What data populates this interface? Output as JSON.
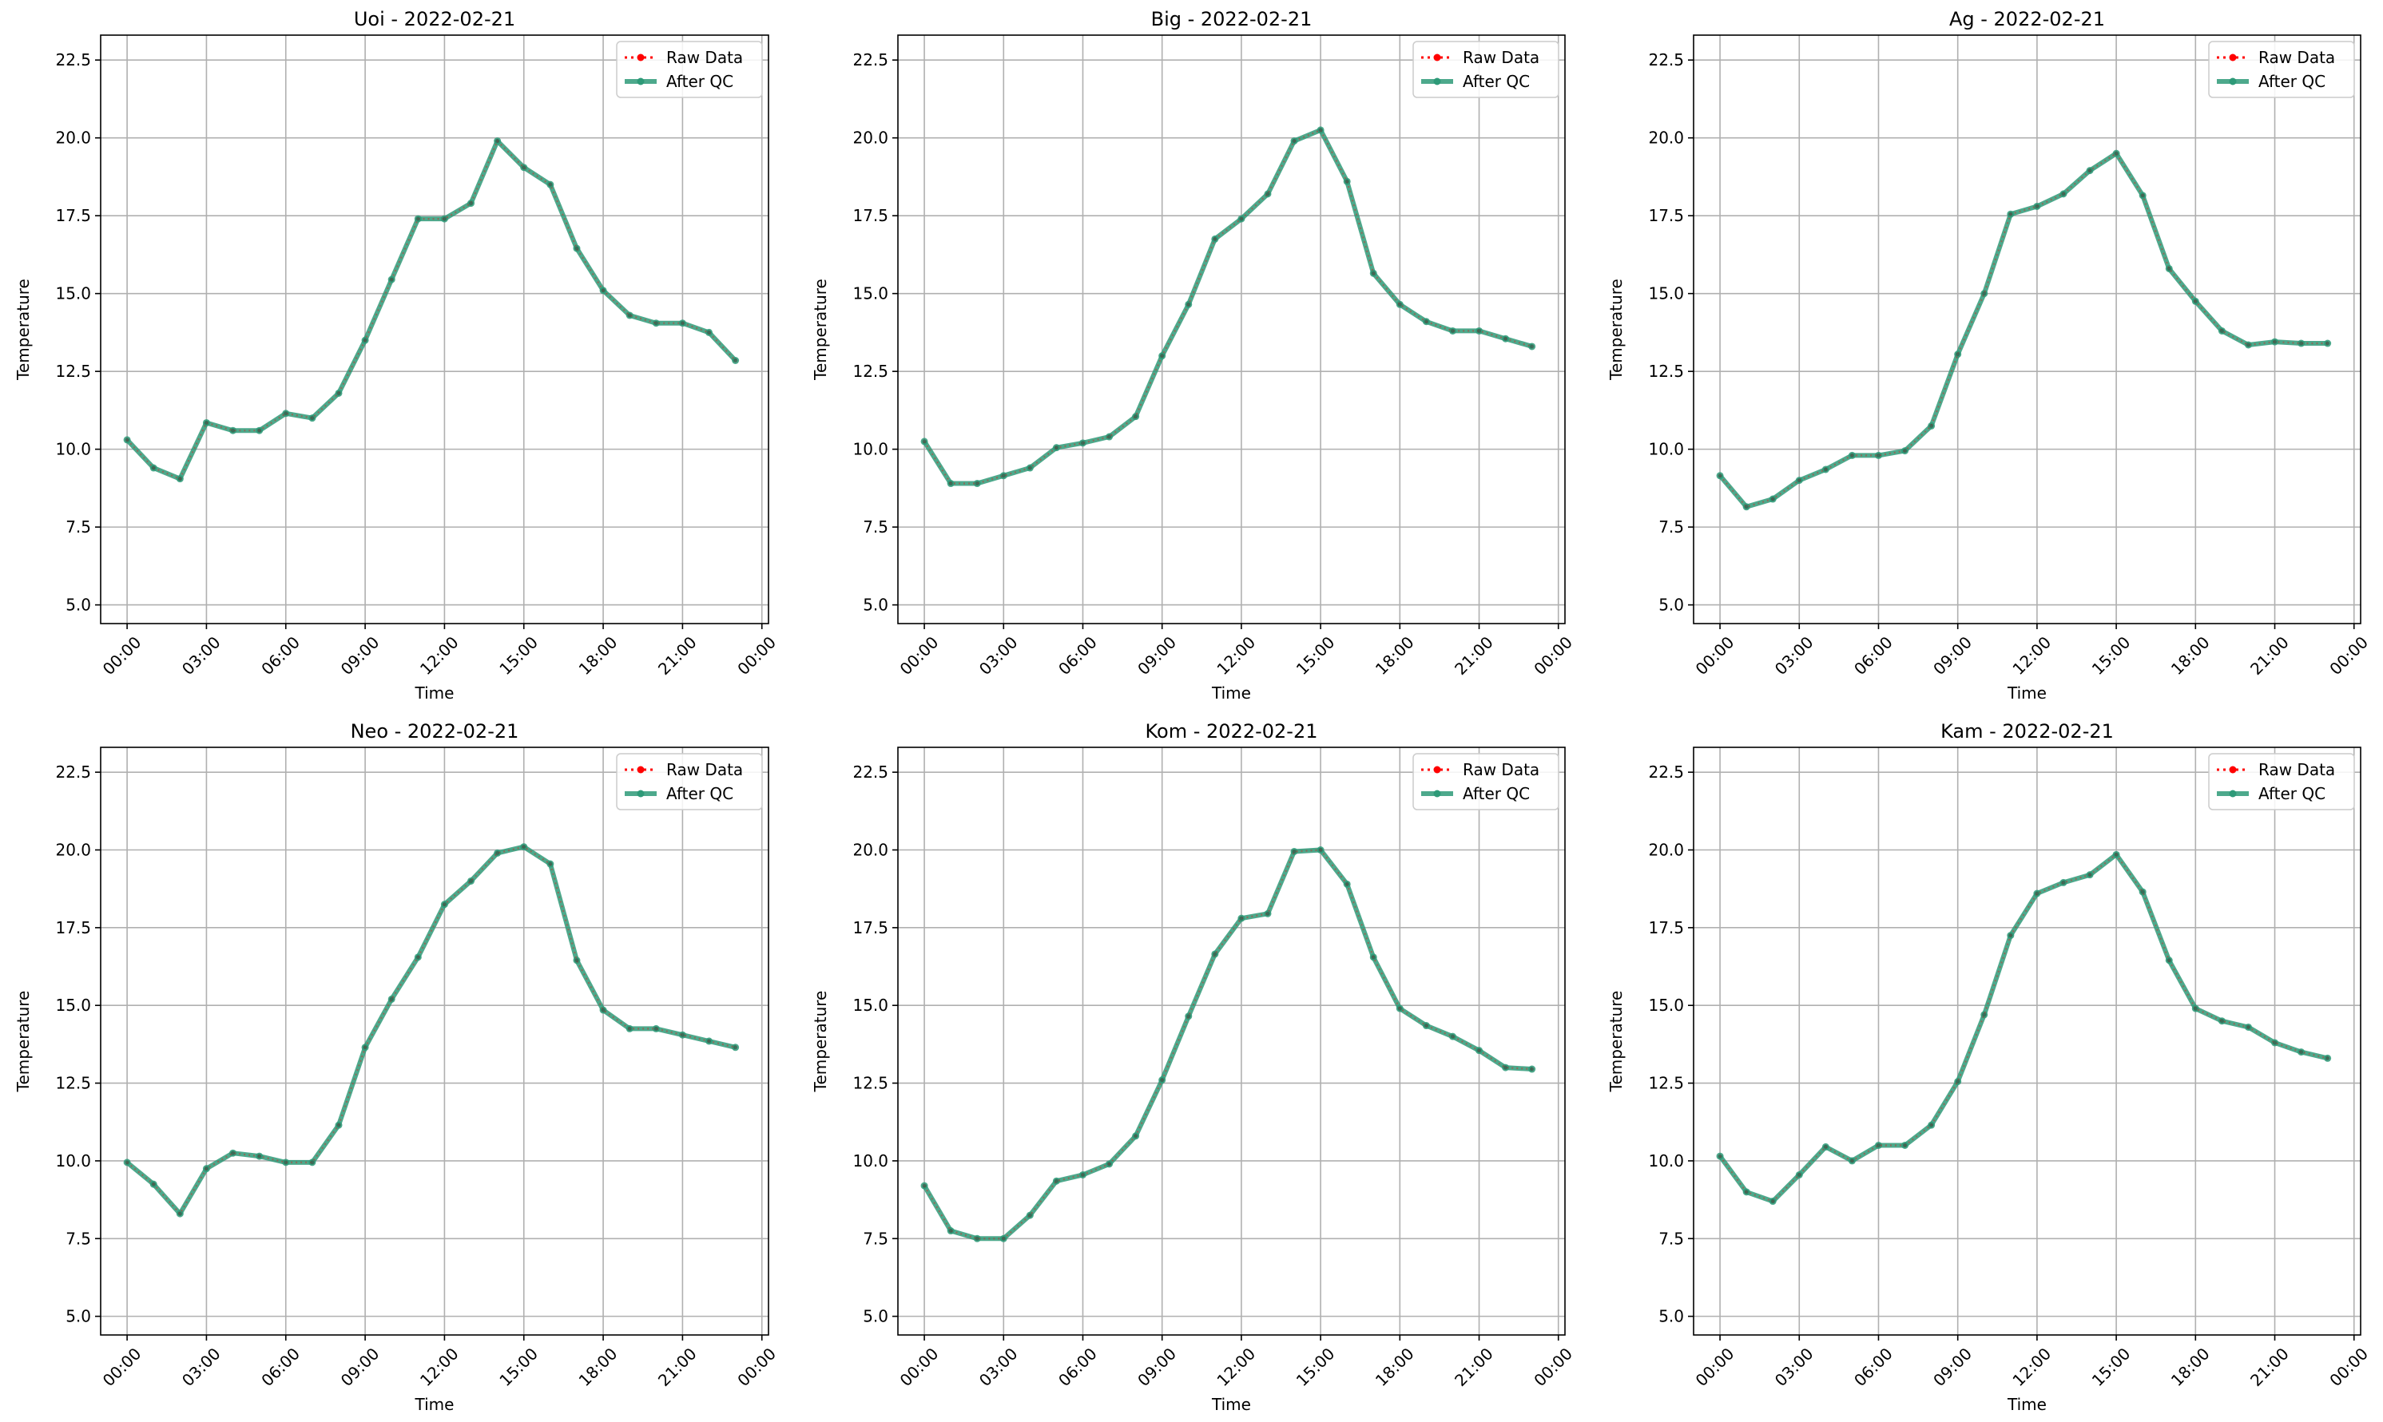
{
  "figure": {
    "background": "#ffffff"
  },
  "colors": {
    "raw": "#ff0000",
    "qc": "#2e9a78",
    "grid": "#b0b0b0",
    "axes": "#000000"
  },
  "chart_data": [
    {
      "type": "line",
      "title": "Uoi - 2022-02-21",
      "xlabel": "Time",
      "ylabel": "Temperature",
      "xlim": [
        "2022-02-20 23:00",
        "2022-02-22 00:15"
      ],
      "ylim": [
        4.4,
        23.3
      ],
      "xticks": [
        "00:00",
        "03:00",
        "06:00",
        "09:00",
        "12:00",
        "15:00",
        "18:00",
        "21:00",
        "00:00"
      ],
      "yticks": [
        "5.0",
        "7.5",
        "10.0",
        "12.5",
        "15.0",
        "17.5",
        "20.0",
        "22.5"
      ],
      "grid": true,
      "legend": "upper right",
      "x": [
        "00:00",
        "01:00",
        "02:00",
        "03:00",
        "04:00",
        "05:00",
        "06:00",
        "07:00",
        "08:00",
        "09:00",
        "10:00",
        "11:00",
        "12:00",
        "13:00",
        "14:00",
        "15:00",
        "16:00",
        "17:00",
        "18:00",
        "19:00",
        "20:00",
        "21:00",
        "22:00",
        "23:00"
      ],
      "series": [
        {
          "name": "Raw Data",
          "style": "dotted",
          "values": [
            10.3,
            9.4,
            9.05,
            10.85,
            10.6,
            10.6,
            11.15,
            11.0,
            11.8,
            13.5,
            15.45,
            17.4,
            17.4,
            17.9,
            19.9,
            19.05,
            18.5,
            16.45,
            15.1,
            14.3,
            14.05,
            14.05,
            13.75,
            12.85
          ]
        },
        {
          "name": "After QC",
          "style": "solid",
          "values": [
            10.3,
            9.4,
            9.05,
            10.85,
            10.6,
            10.6,
            11.15,
            11.0,
            11.8,
            13.5,
            15.45,
            17.4,
            17.4,
            17.9,
            19.9,
            19.05,
            18.5,
            16.45,
            15.1,
            14.3,
            14.05,
            14.05,
            13.75,
            12.85
          ]
        }
      ]
    },
    {
      "type": "line",
      "title": "Big - 2022-02-21",
      "xlabel": "Time",
      "ylabel": "Temperature",
      "xlim": [
        "2022-02-20 23:00",
        "2022-02-22 00:15"
      ],
      "ylim": [
        4.4,
        23.3
      ],
      "xticks": [
        "00:00",
        "03:00",
        "06:00",
        "09:00",
        "12:00",
        "15:00",
        "18:00",
        "21:00",
        "00:00"
      ],
      "yticks": [
        "5.0",
        "7.5",
        "10.0",
        "12.5",
        "15.0",
        "17.5",
        "20.0",
        "22.5"
      ],
      "grid": true,
      "legend": "upper right",
      "x": [
        "00:00",
        "01:00",
        "02:00",
        "03:00",
        "04:00",
        "05:00",
        "06:00",
        "07:00",
        "08:00",
        "09:00",
        "10:00",
        "11:00",
        "12:00",
        "13:00",
        "14:00",
        "15:00",
        "16:00",
        "17:00",
        "18:00",
        "19:00",
        "20:00",
        "21:00",
        "22:00",
        "23:00"
      ],
      "series": [
        {
          "name": "Raw Data",
          "style": "dotted",
          "values": [
            10.25,
            8.9,
            8.9,
            9.15,
            9.4,
            10.05,
            10.2,
            10.4,
            11.05,
            13.0,
            14.65,
            16.75,
            17.4,
            18.2,
            19.9,
            20.25,
            18.6,
            15.65,
            14.65,
            14.1,
            13.8,
            13.8,
            13.55,
            13.3
          ]
        },
        {
          "name": "After QC",
          "style": "solid",
          "values": [
            10.25,
            8.9,
            8.9,
            9.15,
            9.4,
            10.05,
            10.2,
            10.4,
            11.05,
            13.0,
            14.65,
            16.75,
            17.4,
            18.2,
            19.9,
            20.25,
            18.6,
            15.65,
            14.65,
            14.1,
            13.8,
            13.8,
            13.55,
            13.3
          ]
        }
      ]
    },
    {
      "type": "line",
      "title": "Ag - 2022-02-21",
      "xlabel": "Time",
      "ylabel": "Temperature",
      "xlim": [
        "2022-02-20 23:00",
        "2022-02-22 00:15"
      ],
      "ylim": [
        4.4,
        23.3
      ],
      "xticks": [
        "00:00",
        "03:00",
        "06:00",
        "09:00",
        "12:00",
        "15:00",
        "18:00",
        "21:00",
        "00:00"
      ],
      "yticks": [
        "5.0",
        "7.5",
        "10.0",
        "12.5",
        "15.0",
        "17.5",
        "20.0",
        "22.5"
      ],
      "grid": true,
      "legend": "upper right",
      "x": [
        "00:00",
        "01:00",
        "02:00",
        "03:00",
        "04:00",
        "05:00",
        "06:00",
        "07:00",
        "08:00",
        "09:00",
        "10:00",
        "11:00",
        "12:00",
        "13:00",
        "14:00",
        "15:00",
        "16:00",
        "17:00",
        "18:00",
        "19:00",
        "20:00",
        "21:00",
        "22:00",
        "23:00"
      ],
      "series": [
        {
          "name": "Raw Data",
          "style": "dotted",
          "values": [
            9.15,
            8.15,
            8.4,
            9.0,
            9.35,
            9.8,
            9.8,
            9.95,
            10.75,
            13.05,
            15.0,
            17.55,
            17.8,
            18.2,
            18.95,
            19.5,
            18.15,
            15.8,
            14.75,
            13.8,
            13.35,
            13.45,
            13.4,
            13.4
          ]
        },
        {
          "name": "After QC",
          "style": "solid",
          "values": [
            9.15,
            8.15,
            8.4,
            9.0,
            9.35,
            9.8,
            9.8,
            9.95,
            10.75,
            13.05,
            15.0,
            17.55,
            17.8,
            18.2,
            18.95,
            19.5,
            18.15,
            15.8,
            14.75,
            13.8,
            13.35,
            13.45,
            13.4,
            13.4
          ]
        }
      ]
    },
    {
      "type": "line",
      "title": "Neo - 2022-02-21",
      "xlabel": "Time",
      "ylabel": "Temperature",
      "xlim": [
        "2022-02-20 23:00",
        "2022-02-22 00:15"
      ],
      "ylim": [
        4.4,
        23.3
      ],
      "xticks": [
        "00:00",
        "03:00",
        "06:00",
        "09:00",
        "12:00",
        "15:00",
        "18:00",
        "21:00",
        "00:00"
      ],
      "yticks": [
        "5.0",
        "7.5",
        "10.0",
        "12.5",
        "15.0",
        "17.5",
        "20.0",
        "22.5"
      ],
      "grid": true,
      "legend": "upper right",
      "x": [
        "00:00",
        "01:00",
        "02:00",
        "03:00",
        "04:00",
        "05:00",
        "06:00",
        "07:00",
        "08:00",
        "09:00",
        "10:00",
        "11:00",
        "12:00",
        "13:00",
        "14:00",
        "15:00",
        "16:00",
        "17:00",
        "18:00",
        "19:00",
        "20:00",
        "21:00",
        "22:00",
        "23:00"
      ],
      "series": [
        {
          "name": "Raw Data",
          "style": "dotted",
          "values": [
            9.95,
            9.25,
            8.3,
            9.75,
            10.25,
            10.15,
            9.95,
            9.95,
            11.15,
            13.65,
            15.2,
            16.55,
            18.25,
            19.0,
            19.9,
            20.1,
            19.55,
            16.45,
            14.85,
            14.25,
            14.25,
            14.05,
            13.85,
            13.65
          ]
        },
        {
          "name": "After QC",
          "style": "solid",
          "values": [
            9.95,
            9.25,
            8.3,
            9.75,
            10.25,
            10.15,
            9.95,
            9.95,
            11.15,
            13.65,
            15.2,
            16.55,
            18.25,
            19.0,
            19.9,
            20.1,
            19.55,
            16.45,
            14.85,
            14.25,
            14.25,
            14.05,
            13.85,
            13.65
          ]
        }
      ]
    },
    {
      "type": "line",
      "title": "Kom - 2022-02-21",
      "xlabel": "Time",
      "ylabel": "Temperature",
      "xlim": [
        "2022-02-20 23:00",
        "2022-02-22 00:15"
      ],
      "ylim": [
        4.4,
        23.3
      ],
      "xticks": [
        "00:00",
        "03:00",
        "06:00",
        "09:00",
        "12:00",
        "15:00",
        "18:00",
        "21:00",
        "00:00"
      ],
      "yticks": [
        "5.0",
        "7.5",
        "10.0",
        "12.5",
        "15.0",
        "17.5",
        "20.0",
        "22.5"
      ],
      "grid": true,
      "legend": "upper right",
      "x": [
        "00:00",
        "01:00",
        "02:00",
        "03:00",
        "04:00",
        "05:00",
        "06:00",
        "07:00",
        "08:00",
        "09:00",
        "10:00",
        "11:00",
        "12:00",
        "13:00",
        "14:00",
        "15:00",
        "16:00",
        "17:00",
        "18:00",
        "19:00",
        "20:00",
        "21:00",
        "22:00",
        "23:00"
      ],
      "series": [
        {
          "name": "Raw Data",
          "style": "dotted",
          "values": [
            9.2,
            7.75,
            7.5,
            7.5,
            8.25,
            9.35,
            9.55,
            9.9,
            10.8,
            12.6,
            14.65,
            16.65,
            17.8,
            17.95,
            19.95,
            20.0,
            18.9,
            16.55,
            14.9,
            14.35,
            14.0,
            13.55,
            13.0,
            12.95
          ]
        },
        {
          "name": "After QC",
          "style": "solid",
          "values": [
            9.2,
            7.75,
            7.5,
            7.5,
            8.25,
            9.35,
            9.55,
            9.9,
            10.8,
            12.6,
            14.65,
            16.65,
            17.8,
            17.95,
            19.95,
            20.0,
            18.9,
            16.55,
            14.9,
            14.35,
            14.0,
            13.55,
            13.0,
            12.95
          ]
        }
      ]
    },
    {
      "type": "line",
      "title": "Kam - 2022-02-21",
      "xlabel": "Time",
      "ylabel": "Temperature",
      "xlim": [
        "2022-02-20 23:00",
        "2022-02-22 00:15"
      ],
      "ylim": [
        4.4,
        23.3
      ],
      "xticks": [
        "00:00",
        "03:00",
        "06:00",
        "09:00",
        "12:00",
        "15:00",
        "18:00",
        "21:00",
        "00:00"
      ],
      "yticks": [
        "5.0",
        "7.5",
        "10.0",
        "12.5",
        "15.0",
        "17.5",
        "20.0",
        "22.5"
      ],
      "grid": true,
      "legend": "upper right",
      "x": [
        "00:00",
        "01:00",
        "02:00",
        "03:00",
        "04:00",
        "05:00",
        "06:00",
        "07:00",
        "08:00",
        "09:00",
        "10:00",
        "11:00",
        "12:00",
        "13:00",
        "14:00",
        "15:00",
        "16:00",
        "17:00",
        "18:00",
        "19:00",
        "20:00",
        "21:00",
        "22:00",
        "23:00"
      ],
      "series": [
        {
          "name": "Raw Data",
          "style": "dotted",
          "values": [
            10.15,
            9.0,
            8.7,
            9.55,
            10.45,
            10.0,
            10.5,
            10.5,
            11.15,
            12.55,
            14.7,
            17.25,
            18.6,
            18.95,
            19.2,
            19.85,
            18.65,
            16.45,
            14.9,
            14.5,
            14.3,
            13.8,
            13.5,
            13.3
          ]
        },
        {
          "name": "After QC",
          "style": "solid",
          "values": [
            10.15,
            9.0,
            8.7,
            9.55,
            10.45,
            10.0,
            10.5,
            10.5,
            11.15,
            12.55,
            14.7,
            17.25,
            18.6,
            18.95,
            19.2,
            19.85,
            18.65,
            16.45,
            14.9,
            14.5,
            14.3,
            13.8,
            13.5,
            13.3
          ]
        }
      ]
    }
  ]
}
